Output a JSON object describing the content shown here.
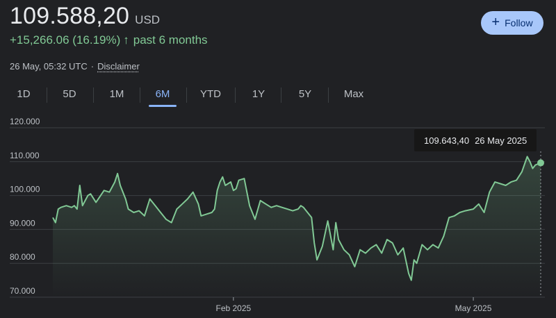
{
  "header": {
    "price": "109.588,20",
    "currency": "USD",
    "change": "+15,266.06 (16.19%)",
    "change_arrow": "↑",
    "period": "past 6 months",
    "timestamp": "26 May, 05:32 UTC",
    "separator": "·",
    "disclaimer": "Disclaimer",
    "follow_icon": "plus-icon",
    "follow_label": "Follow"
  },
  "tabs": [
    {
      "label": "1D",
      "active": false
    },
    {
      "label": "5D",
      "active": false
    },
    {
      "label": "1M",
      "active": false
    },
    {
      "label": "6M",
      "active": true
    },
    {
      "label": "YTD",
      "active": false
    },
    {
      "label": "1Y",
      "active": false
    },
    {
      "label": "5Y",
      "active": false
    },
    {
      "label": "Max",
      "active": false
    }
  ],
  "tooltip": {
    "value": "109.643,40",
    "date": "26 May 2025"
  },
  "colors": {
    "background": "#202124",
    "line": "#81c995",
    "accent": "#8ab4f8",
    "follow_bg": "#a8c7fa"
  },
  "chart_data": {
    "type": "area",
    "y_tick_labels": [
      "120.000",
      "110.000",
      "100.000",
      "90.000",
      "80.000",
      "70.000"
    ],
    "y_ticks": [
      120000,
      110000,
      100000,
      90000,
      80000,
      70000
    ],
    "ylim": [
      70000,
      120000
    ],
    "x_tick_labels": [
      "Feb 2025",
      "May 2025"
    ],
    "x_ticks": [
      "2025-02-01",
      "2025-05-01"
    ],
    "xlim": [
      "2024-11-26",
      "2025-05-26"
    ],
    "grid": true,
    "series": [
      {
        "x": [
          "2024-11-26",
          "2024-11-27",
          "2024-11-28",
          "2024-11-29",
          "2024-12-01",
          "2024-12-03",
          "2024-12-04",
          "2024-12-05",
          "2024-12-06",
          "2024-12-07",
          "2024-12-09",
          "2024-12-10",
          "2024-12-12",
          "2024-12-15",
          "2024-12-17",
          "2024-12-19",
          "2024-12-20",
          "2024-12-21",
          "2024-12-23",
          "2024-12-24",
          "2024-12-26",
          "2024-12-28",
          "2024-12-30",
          "2025-01-01",
          "2025-01-03",
          "2025-01-05",
          "2025-01-07",
          "2025-01-09",
          "2025-01-11",
          "2025-01-13",
          "2025-01-15",
          "2025-01-17",
          "2025-01-19",
          "2025-01-20",
          "2025-01-22",
          "2025-01-24",
          "2025-01-25",
          "2025-01-26",
          "2025-01-27",
          "2025-01-28",
          "2025-01-29",
          "2025-01-31",
          "2025-02-01",
          "2025-02-02",
          "2025-02-03",
          "2025-02-05",
          "2025-02-07",
          "2025-02-09",
          "2025-02-11",
          "2025-02-13",
          "2025-02-15",
          "2025-02-17",
          "2025-02-19",
          "2025-02-21",
          "2025-02-23",
          "2025-02-25",
          "2025-02-26",
          "2025-02-27",
          "2025-02-28",
          "2025-03-02",
          "2025-03-03",
          "2025-03-04",
          "2025-03-06",
          "2025-03-08",
          "2025-03-10",
          "2025-03-11",
          "2025-03-12",
          "2025-03-14",
          "2025-03-16",
          "2025-03-18",
          "2025-03-20",
          "2025-03-22",
          "2025-03-24",
          "2025-03-26",
          "2025-03-28",
          "2025-03-30",
          "2025-04-01",
          "2025-04-03",
          "2025-04-05",
          "2025-04-07",
          "2025-04-08",
          "2025-04-09",
          "2025-04-10",
          "2025-04-12",
          "2025-04-14",
          "2025-04-16",
          "2025-04-18",
          "2025-04-20",
          "2025-04-22",
          "2025-04-24",
          "2025-04-26",
          "2025-04-28",
          "2025-05-01",
          "2025-05-03",
          "2025-05-05",
          "2025-05-07",
          "2025-05-09",
          "2025-05-11",
          "2025-05-13",
          "2025-05-15",
          "2025-05-17",
          "2025-05-19",
          "2025-05-21",
          "2025-05-22",
          "2025-05-23",
          "2025-05-24",
          "2025-05-26"
        ],
        "y": [
          93500,
          92000,
          96000,
          96500,
          97000,
          96500,
          97000,
          96000,
          103000,
          97000,
          100000,
          100500,
          98000,
          101500,
          101000,
          104000,
          106500,
          103000,
          99000,
          96000,
          95000,
          95500,
          94000,
          99000,
          97000,
          95000,
          93000,
          92000,
          96000,
          97500,
          99000,
          101000,
          97500,
          94000,
          94500,
          95000,
          96000,
          101500,
          104000,
          105500,
          103000,
          104000,
          101500,
          102000,
          104500,
          105000,
          97000,
          93000,
          98500,
          97500,
          96500,
          97000,
          96500,
          96000,
          95500,
          96000,
          97000,
          96500,
          95500,
          93500,
          86000,
          81000,
          85000,
          92500,
          84000,
          92000,
          87000,
          84000,
          82500,
          79000,
          84000,
          83000,
          84500,
          85500,
          83000,
          87000,
          86000,
          82500,
          84500,
          77000,
          75000,
          81000,
          80000,
          85500,
          84000,
          85500,
          84500,
          88000,
          93500,
          94000,
          95000,
          95500,
          96000,
          97500,
          95000,
          101000,
          104000,
          103500,
          103000,
          104000,
          104500,
          107000,
          111500,
          110000,
          108000,
          109000,
          109643
        ]
      }
    ]
  }
}
